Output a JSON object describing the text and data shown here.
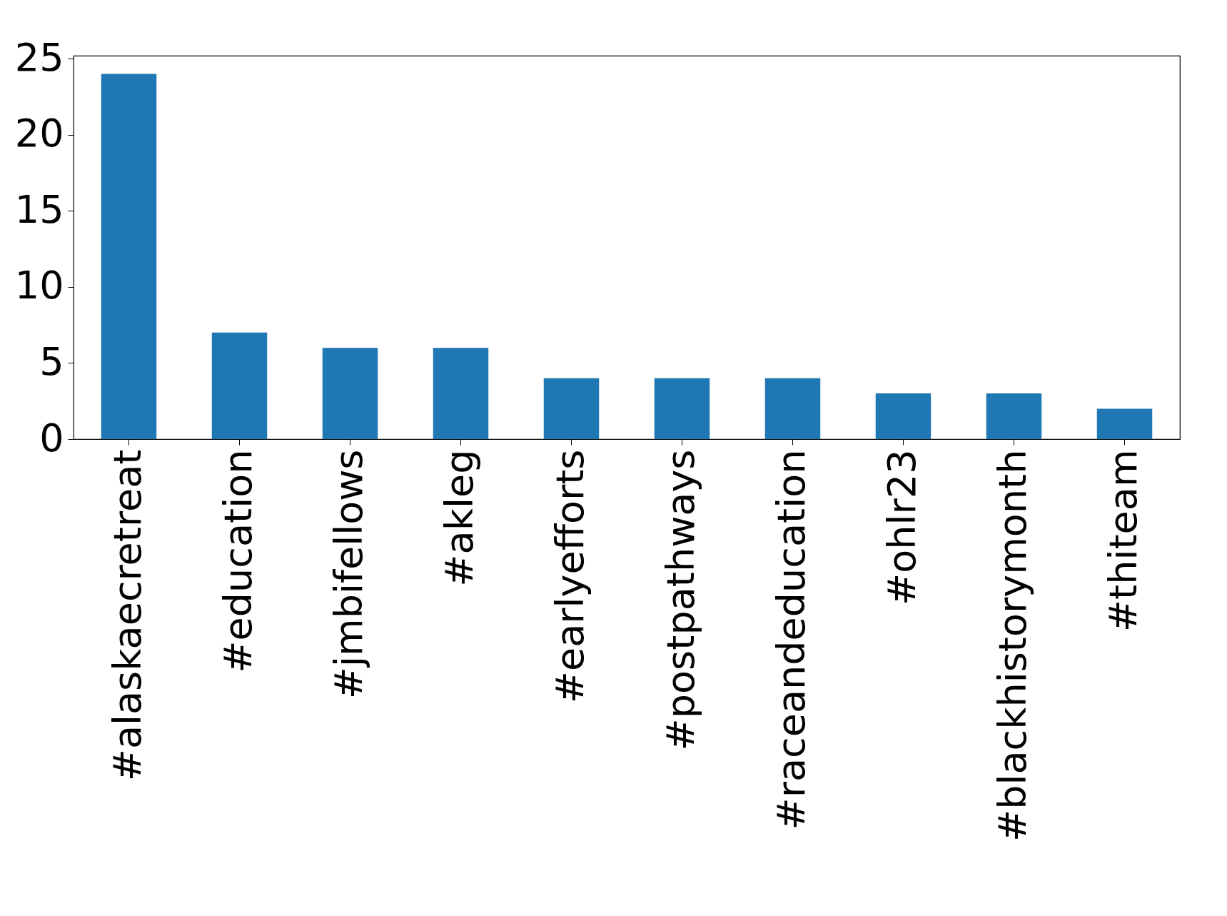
{
  "chart_data": {
    "type": "bar",
    "categories": [
      "#alaskaecretreat",
      "#education",
      "#jmbifellows",
      "#akleg",
      "#earlyefforts",
      "#postpathways",
      "#raceandeducation",
      "#ohlr23",
      "#blackhistorymonth",
      "#thiteam"
    ],
    "values": [
      24,
      7,
      6,
      6,
      4,
      4,
      4,
      3,
      3,
      2
    ],
    "color": "#1f77b4",
    "ylim": [
      0,
      25.2
    ],
    "yticks": [
      0,
      5,
      10,
      15,
      20,
      25
    ],
    "grid": false
  }
}
